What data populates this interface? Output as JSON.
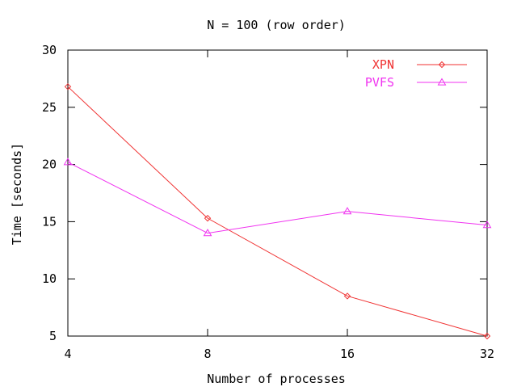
{
  "chart_data": {
    "type": "line",
    "title": "N = 100 (row order)",
    "xlabel": "Number of processes",
    "ylabel": "Time [seconds]",
    "categories": [
      "4",
      "8",
      "16",
      "32"
    ],
    "y_ticks": [
      "5",
      "10",
      "15",
      "20",
      "25",
      "30"
    ],
    "ylim": [
      5,
      30
    ],
    "grid": false,
    "legend_position": "top-right",
    "series": [
      {
        "name": "XPN",
        "color": "#f03232",
        "marker": "diamond",
        "values": [
          26.8,
          15.3,
          8.5,
          5.0
        ]
      },
      {
        "name": "PVFS",
        "color": "#f032f0",
        "marker": "triangle",
        "values": [
          20.2,
          14.0,
          15.9,
          14.7
        ]
      }
    ]
  }
}
